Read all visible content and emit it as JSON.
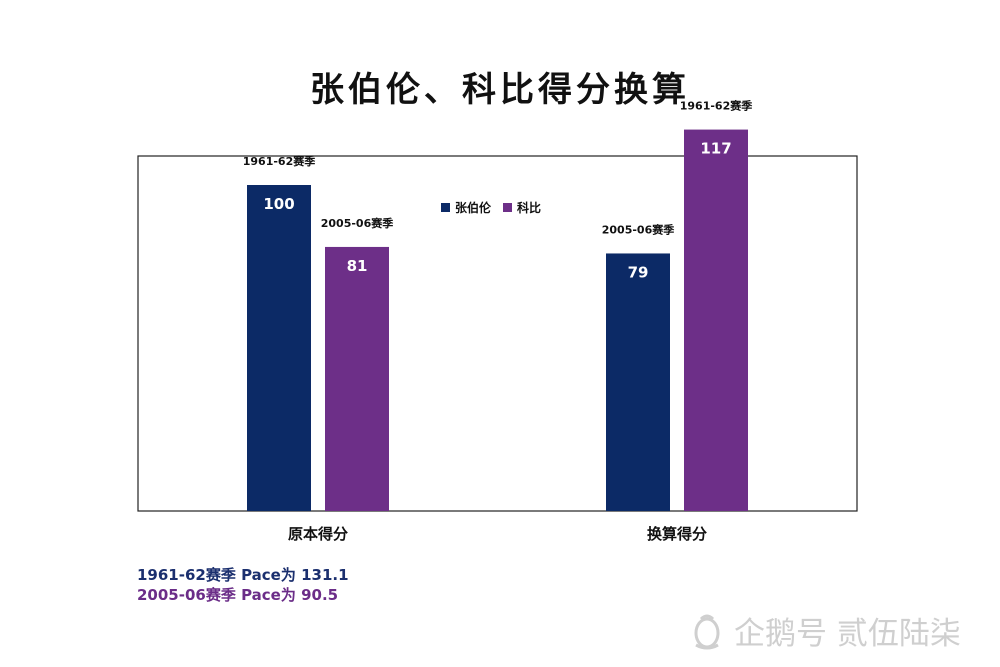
{
  "title": "张伯伦、科比得分换算",
  "notes": [
    {
      "text": "1961-62赛季  Pace为 131.1",
      "color": "#1b2f6e"
    },
    {
      "text": "2005-06赛季  Pace为 90.5",
      "color": "#6b2d88"
    }
  ],
  "watermark": {
    "text": "企鹅号 贰伍陆柒",
    "icon": "penguin-logo-icon"
  },
  "chart_data": {
    "type": "bar",
    "categories": [
      "原本得分",
      "换算得分"
    ],
    "series": [
      {
        "name": "张伯伦",
        "color": "#0c2a66",
        "values": [
          100,
          79
        ],
        "labels": [
          "100",
          "79"
        ],
        "annotations": [
          "1961-62赛季",
          "2005-06赛季"
        ]
      },
      {
        "name": "科比",
        "color": "#6d2f88",
        "values": [
          81,
          117
        ],
        "labels": [
          "81",
          "117"
        ],
        "annotations": [
          "2005-06赛季",
          "1961-62赛季"
        ]
      }
    ],
    "ylim": [
      0,
      120
    ],
    "grid": false,
    "legend": "top-center"
  }
}
